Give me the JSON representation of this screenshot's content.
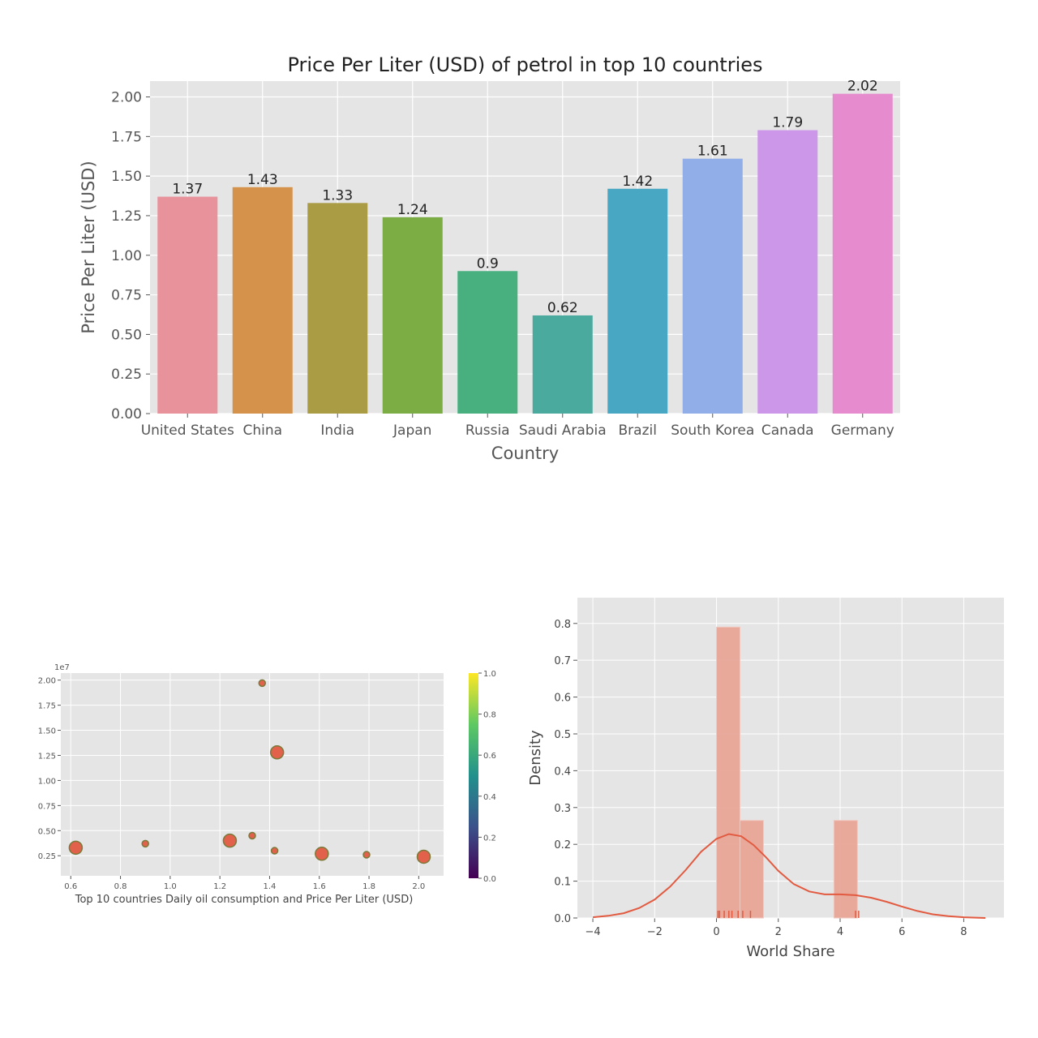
{
  "chart_data": [
    {
      "type": "bar",
      "title": "Price Per Liter (USD) of petrol in top 10 countries",
      "xlabel": "Country",
      "ylabel": "Price Per Liter (USD)",
      "ylim": [
        0,
        2.1
      ],
      "yticks": [
        "0.00",
        "0.25",
        "0.50",
        "0.75",
        "1.00",
        "1.25",
        "1.50",
        "1.75",
        "2.00"
      ],
      "grid": true,
      "categories": [
        "United States",
        "China",
        "India",
        "Japan",
        "Russia",
        "Saudi Arabia",
        "Brazil",
        "South Korea",
        "Canada",
        "Germany"
      ],
      "values": [
        1.37,
        1.43,
        1.33,
        1.24,
        0.9,
        0.62,
        1.42,
        1.61,
        1.79,
        2.02
      ],
      "labels": [
        "1.37",
        "1.43",
        "1.33",
        "1.24",
        "0.9",
        "0.62",
        "1.42",
        "1.61",
        "1.79",
        "2.02"
      ],
      "colors": [
        "#e8929c",
        "#d4924a",
        "#aa9c44",
        "#7cad44",
        "#48b07e",
        "#4aaa9e",
        "#48a8c4",
        "#92aee8",
        "#cc97e8",
        "#e68cce"
      ]
    },
    {
      "type": "scatter",
      "xlabel": "Top 10 countries Daily oil consumption and Price Per Liter (USD)",
      "ylabel": "",
      "xlim": [
        0.56,
        2.1
      ],
      "ylim": [
        0.05,
        2.07
      ],
      "y_multiplier": "1e7",
      "xticks": [
        "0.6",
        "0.8",
        "1.0",
        "1.2",
        "1.4",
        "1.6",
        "1.8",
        "2.0"
      ],
      "yticks": [
        "0.25",
        "0.50",
        "0.75",
        "1.00",
        "1.25",
        "1.50",
        "1.75",
        "2.00"
      ],
      "grid": true,
      "marker_color": "#e2614a",
      "marker_edge": "#7a7a3a",
      "points": [
        {
          "x": 1.37,
          "y": 1.97,
          "size": 4
        },
        {
          "x": 1.43,
          "y": 1.28,
          "size": 8
        },
        {
          "x": 1.33,
          "y": 0.45,
          "size": 4
        },
        {
          "x": 1.24,
          "y": 0.4,
          "size": 8
        },
        {
          "x": 0.9,
          "y": 0.37,
          "size": 4
        },
        {
          "x": 0.62,
          "y": 0.33,
          "size": 8
        },
        {
          "x": 1.42,
          "y": 0.3,
          "size": 4
        },
        {
          "x": 1.61,
          "y": 0.27,
          "size": 8
        },
        {
          "x": 1.79,
          "y": 0.26,
          "size": 4
        },
        {
          "x": 2.02,
          "y": 0.24,
          "size": 8
        }
      ],
      "colorbar": {
        "range": [
          0,
          1
        ],
        "ticks": [
          "0.0",
          "0.2",
          "0.4",
          "0.6",
          "0.8",
          "1.0"
        ],
        "colormap": [
          "#440154",
          "#3b528b",
          "#21918c",
          "#5ec962",
          "#fde725"
        ]
      }
    },
    {
      "type": "histogram",
      "xlabel": "World Share",
      "ylabel": "Density",
      "xlim": [
        -4.5,
        9.3
      ],
      "ylim": [
        0,
        0.87
      ],
      "xticks": [
        "−4",
        "−2",
        "0",
        "2",
        "4",
        "6",
        "8"
      ],
      "yticks": [
        "0.0",
        "0.1",
        "0.2",
        "0.3",
        "0.4",
        "0.5",
        "0.6",
        "0.7",
        "0.8"
      ],
      "grid": true,
      "bar_color": "#e8a597",
      "line_color": "#e25a40",
      "bins": [
        {
          "x0": 0.0,
          "x1": 0.76,
          "density": 0.79
        },
        {
          "x0": 0.76,
          "x1": 1.52,
          "density": 0.265
        },
        {
          "x0": 1.52,
          "x1": 2.28,
          "density": 0
        },
        {
          "x0": 2.28,
          "x1": 3.04,
          "density": 0
        },
        {
          "x0": 3.04,
          "x1": 3.8,
          "density": 0
        },
        {
          "x0": 3.8,
          "x1": 4.56,
          "density": 0.265
        }
      ],
      "kde": [
        {
          "x": -4.0,
          "y": 0.002
        },
        {
          "x": -3.5,
          "y": 0.006
        },
        {
          "x": -3.0,
          "y": 0.013
        },
        {
          "x": -2.5,
          "y": 0.027
        },
        {
          "x": -2.0,
          "y": 0.05
        },
        {
          "x": -1.5,
          "y": 0.085
        },
        {
          "x": -1.0,
          "y": 0.13
        },
        {
          "x": -0.5,
          "y": 0.18
        },
        {
          "x": 0.0,
          "y": 0.215
        },
        {
          "x": 0.4,
          "y": 0.228
        },
        {
          "x": 0.8,
          "y": 0.222
        },
        {
          "x": 1.2,
          "y": 0.198
        },
        {
          "x": 1.6,
          "y": 0.165
        },
        {
          "x": 2.0,
          "y": 0.128
        },
        {
          "x": 2.5,
          "y": 0.092
        },
        {
          "x": 3.0,
          "y": 0.072
        },
        {
          "x": 3.5,
          "y": 0.064
        },
        {
          "x": 4.0,
          "y": 0.064
        },
        {
          "x": 4.5,
          "y": 0.062
        },
        {
          "x": 5.0,
          "y": 0.055
        },
        {
          "x": 5.5,
          "y": 0.044
        },
        {
          "x": 6.0,
          "y": 0.031
        },
        {
          "x": 6.5,
          "y": 0.019
        },
        {
          "x": 7.0,
          "y": 0.01
        },
        {
          "x": 7.5,
          "y": 0.005
        },
        {
          "x": 8.0,
          "y": 0.002
        },
        {
          "x": 8.7,
          "y": 0.0
        }
      ],
      "rug": [
        0.05,
        0.1,
        0.25,
        0.4,
        0.5,
        0.7,
        0.85,
        1.1,
        4.5,
        4.6
      ]
    }
  ]
}
